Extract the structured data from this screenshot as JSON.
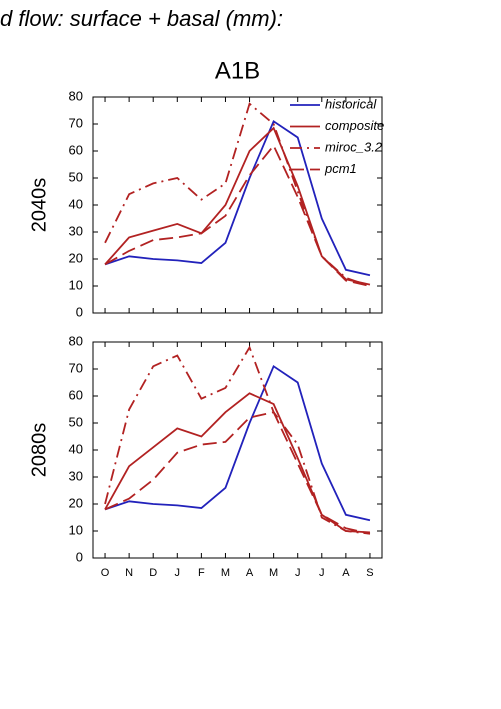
{
  "title": "d flow: surface + basal (mm):",
  "chart_data": [
    {
      "type": "line",
      "title": "A1B",
      "ylabel": "2040s",
      "legend": "upper right",
      "ylim": [
        0,
        80
      ],
      "yticks": [
        0,
        10,
        20,
        30,
        40,
        50,
        60,
        70,
        80
      ],
      "series": [
        {
          "name": "historical",
          "color": "#2222bb",
          "dash": "solid",
          "values": [
            18,
            21,
            20,
            19.5,
            18.5,
            26,
            50,
            71,
            65,
            35,
            16,
            14
          ]
        },
        {
          "name": "composite",
          "color": "#b22222",
          "dash": "solid",
          "values": [
            18,
            28,
            30.5,
            33,
            29.5,
            40,
            60,
            68.5,
            47,
            21,
            12.5,
            10.5
          ]
        },
        {
          "name": "miroc_3.2",
          "color": "#b22222",
          "dash": "dashdot",
          "values": [
            26,
            44,
            48,
            50,
            42,
            48,
            77.5,
            70,
            45,
            21,
            13,
            10
          ]
        },
        {
          "name": "pcm1",
          "color": "#b22222",
          "dash": "longdash",
          "values": [
            18,
            23,
            27,
            28,
            29.5,
            36,
            51,
            62,
            43,
            21,
            12,
            10
          ]
        }
      ]
    },
    {
      "type": "line",
      "ylabel": "2080s",
      "categories": [
        "O",
        "N",
        "D",
        "J",
        "F",
        "M",
        "A",
        "M",
        "J",
        "J",
        "A",
        "S"
      ],
      "ylim": [
        0,
        80
      ],
      "yticks": [
        0,
        10,
        20,
        30,
        40,
        50,
        60,
        70,
        80
      ],
      "series": [
        {
          "color": "#2222bb",
          "dash": "solid",
          "values": [
            18,
            21,
            20,
            19.5,
            18.5,
            26,
            50,
            71,
            65,
            35,
            16,
            14
          ]
        },
        {
          "color": "#b22222",
          "dash": "solid",
          "values": [
            18,
            34,
            41,
            48,
            45,
            54,
            61,
            57,
            37,
            16,
            10,
            9.5
          ]
        },
        {
          "color": "#b22222",
          "dash": "dashdot",
          "values": [
            20,
            55,
            71,
            75,
            59,
            63,
            78,
            54,
            42,
            15,
            10,
            9
          ]
        },
        {
          "color": "#b22222",
          "dash": "longdash",
          "values": [
            18,
            22,
            29,
            39,
            42,
            43,
            52,
            54,
            35,
            16,
            11,
            9
          ]
        }
      ]
    }
  ]
}
